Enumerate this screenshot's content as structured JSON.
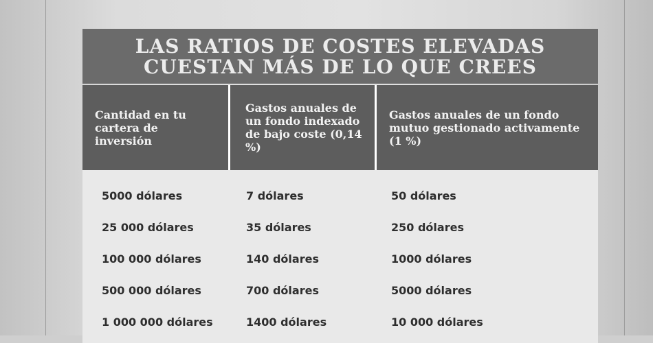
{
  "table": {
    "title_line1": "LAS RATIOS DE COSTES ELEVADAS",
    "title_line2": "CUESTAN MÁS DE LO QUE CREES",
    "headers": [
      "Cantidad en tu cartera de inversión",
      "Gastos anuales de un fondo indexado de bajo coste (0,14 %)",
      "Gastos anuales de un fondo mutuo gestionado activamente (1 %)"
    ],
    "rows": [
      [
        "5000 dólares",
        "7 dólares",
        "50 dólares"
      ],
      [
        "25 000 dólares",
        "35 dólares",
        "250 dólares"
      ],
      [
        "100 000 dólares",
        "140 dólares",
        "1000 dólares"
      ],
      [
        "500 000 dólares",
        "700 dólares",
        "5000 dólares"
      ],
      [
        "1 000 000 dólares",
        "1400 dólares",
        "10 000 dólares"
      ]
    ]
  }
}
